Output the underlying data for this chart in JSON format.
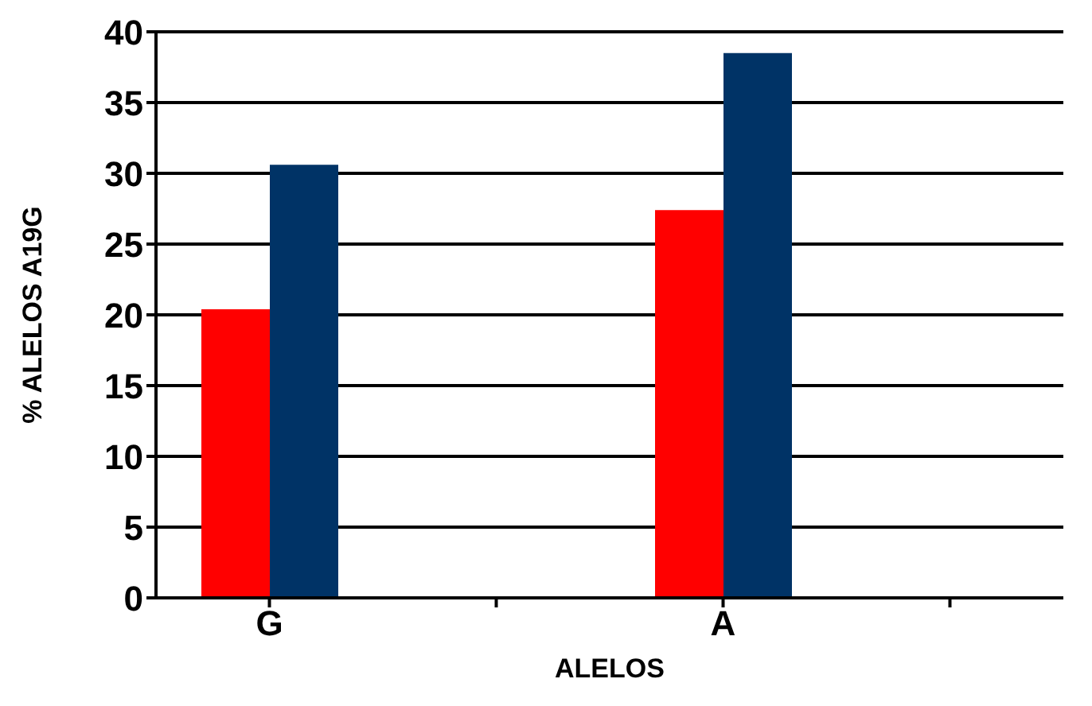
{
  "chart_data": {
    "type": "bar",
    "xlabel": "ALELOS",
    "ylabel": "% ALELOS A19G",
    "categories": [
      "G",
      null,
      "A",
      null
    ],
    "series": [
      {
        "color": "#ff0000",
        "values": [
          20.4,
          null,
          27.4,
          null
        ]
      },
      {
        "color": "#003366",
        "values": [
          30.6,
          null,
          38.5,
          null
        ]
      }
    ],
    "ylim": [
      0,
      40
    ],
    "yticks": [
      0,
      5,
      10,
      15,
      20,
      25,
      30,
      35,
      40
    ],
    "grid": "y"
  }
}
